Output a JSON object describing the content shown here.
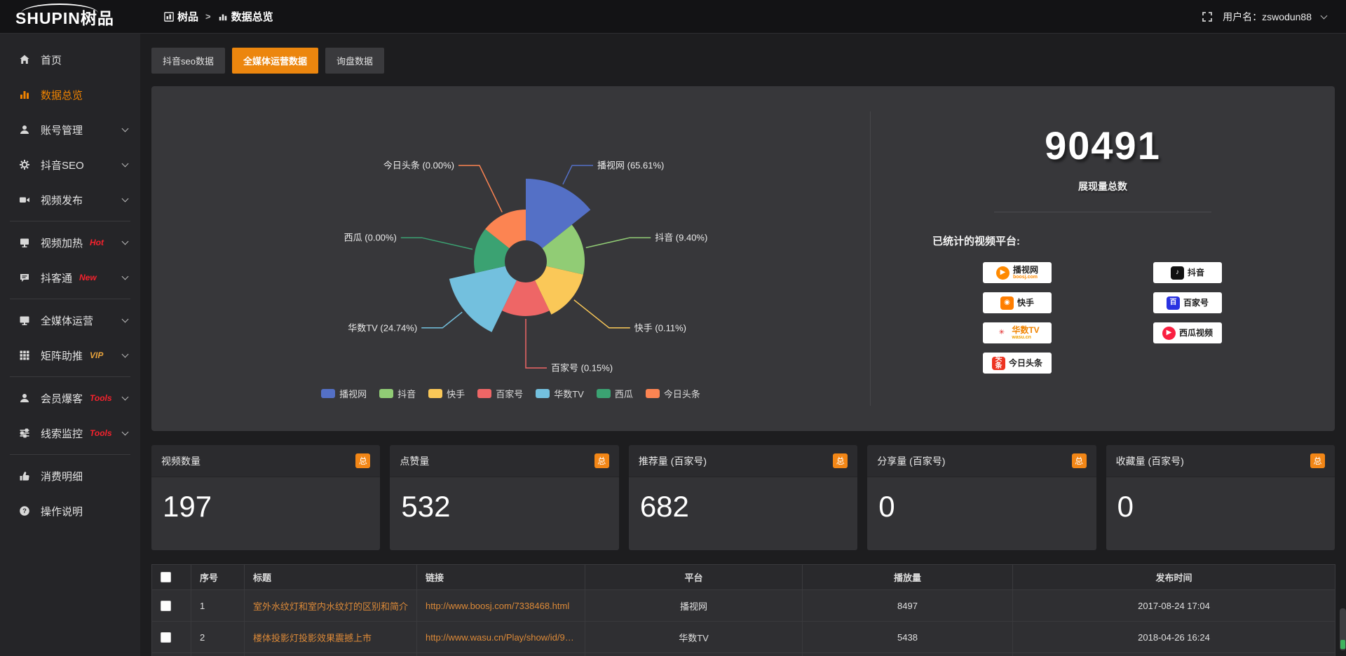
{
  "topbar": {
    "logo": "SHUPIN树品",
    "breadcrumb": {
      "root": "树品",
      "separator": ">",
      "current": "数据总览"
    },
    "username_label": "用户名：",
    "username": "zswodun88"
  },
  "sidebar": {
    "items": [
      {
        "label": "首页",
        "icon": "home",
        "active": false,
        "chevron": false,
        "badge": "",
        "divider_after": false
      },
      {
        "label": "数据总览",
        "icon": "chart",
        "active": true,
        "chevron": false,
        "badge": "",
        "divider_after": false
      },
      {
        "label": "账号管理",
        "icon": "user",
        "active": false,
        "chevron": true,
        "badge": "",
        "divider_after": false
      },
      {
        "label": "抖音SEO",
        "icon": "gear",
        "active": false,
        "chevron": true,
        "badge": "",
        "divider_after": false
      },
      {
        "label": "视频发布",
        "icon": "camera",
        "active": false,
        "chevron": true,
        "badge": "",
        "divider_after": true
      },
      {
        "label": "视频加热",
        "icon": "display",
        "active": false,
        "chevron": true,
        "badge": "Hot",
        "badge_color": "#f5222d",
        "divider_after": false
      },
      {
        "label": "抖客通",
        "icon": "chat",
        "active": false,
        "chevron": true,
        "badge": "New",
        "badge_color": "#f5222d",
        "divider_after": true
      },
      {
        "label": "全媒体运营",
        "icon": "monitor",
        "active": false,
        "chevron": true,
        "badge": "",
        "divider_after": false
      },
      {
        "label": "矩阵助推",
        "icon": "grid",
        "active": false,
        "chevron": true,
        "badge": "VIP",
        "badge_color": "#e6a23c",
        "divider_after": true
      },
      {
        "label": "会员爆客",
        "icon": "user",
        "active": false,
        "chevron": true,
        "badge": "Tools",
        "badge_color": "#f5222d",
        "divider_after": false
      },
      {
        "label": "线索监控",
        "icon": "sliders",
        "active": false,
        "chevron": true,
        "badge": "Tools",
        "badge_color": "#f5222d",
        "divider_after": true
      },
      {
        "label": "消费明细",
        "icon": "consumption",
        "active": false,
        "chevron": false,
        "badge": "",
        "divider_after": false
      },
      {
        "label": "操作说明",
        "icon": "help",
        "active": false,
        "chevron": false,
        "badge": "",
        "divider_after": false
      }
    ]
  },
  "tabs": [
    {
      "label": "抖音seo数据",
      "active": false
    },
    {
      "label": "全媒体运营数据",
      "active": true
    },
    {
      "label": "询盘数据",
      "active": false
    }
  ],
  "chart_data": {
    "type": "pie",
    "subtype": "nightingale-rose",
    "title": "",
    "legend_position": "bottom",
    "inner_radius": 30,
    "slices": [
      {
        "name": "播视网",
        "percent": 65.61,
        "label": "播视网 (65.61%)",
        "color": "#5470c6",
        "display_radius": 118
      },
      {
        "name": "抖音",
        "percent": 9.4,
        "label": "抖音 (9.40%)",
        "color": "#91cc75",
        "display_radius": 84
      },
      {
        "name": "快手",
        "percent": 0.11,
        "label": "快手 (0.11%)",
        "color": "#fac858",
        "display_radius": 84
      },
      {
        "name": "百家号",
        "percent": 0.15,
        "label": "百家号 (0.15%)",
        "color": "#ee6666",
        "display_radius": 78
      },
      {
        "name": "华数TV",
        "percent": 24.74,
        "label": "华数TV (24.74%)",
        "color": "#73c0de",
        "display_radius": 112
      },
      {
        "name": "西瓜",
        "percent": 0.0,
        "label": "西瓜 (0.00%)",
        "color": "#3ba272",
        "display_radius": 74
      },
      {
        "name": "今日头条",
        "percent": 0.0,
        "label": "今日头条 (0.00%)",
        "color": "#fc8452",
        "display_radius": 74
      }
    ]
  },
  "summary": {
    "total_value": "90491",
    "total_label": "展现量总数",
    "platforms_label": "已统计的视频平台:",
    "platforms": [
      {
        "name": "播视网",
        "sub": "boosj.com",
        "sub_color": "#ff8a00",
        "icon_glyph": "▶",
        "icon_bg": "#ff8a00",
        "icon_round": true
      },
      {
        "name": "快手",
        "sub": "",
        "icon_glyph": "◉",
        "icon_bg": "#ff7e00",
        "icon_round": false
      },
      {
        "name": "华数TV",
        "name_color": "#f08300",
        "sub": "wasu.cn",
        "sub_color": "#f0a000",
        "icon_glyph": "✳",
        "icon_bg": "#ffffff",
        "icon_fg": "#e02020",
        "icon_round": false
      },
      {
        "name": "今日头条",
        "sub": "",
        "icon_glyph": "头条",
        "icon_bg": "#ed3321",
        "icon_round": false
      },
      {
        "name": "抖音",
        "sub": "",
        "icon_glyph": "♪",
        "icon_bg": "#111111",
        "icon_round": false
      },
      {
        "name": "百家号",
        "sub": "",
        "icon_glyph": "百",
        "icon_bg": "#2932e1",
        "icon_round": false
      },
      {
        "name": "西瓜视频",
        "sub": "",
        "icon_glyph": "▶",
        "icon_bg": "#fa1f41",
        "icon_round": true
      }
    ]
  },
  "stat_cards": [
    {
      "title": "视频数量",
      "badge": "总",
      "value": "197"
    },
    {
      "title": "点赞量",
      "badge": "总",
      "value": "532"
    },
    {
      "title": "推荐量 (百家号)",
      "badge": "总",
      "value": "682"
    },
    {
      "title": "分享量 (百家号)",
      "badge": "总",
      "value": "0"
    },
    {
      "title": "收藏量 (百家号)",
      "badge": "总",
      "value": "0"
    }
  ],
  "table": {
    "headers": [
      "序号",
      "标题",
      "链接",
      "平台",
      "播放量",
      "发布时间"
    ],
    "rows": [
      {
        "index": "1",
        "title": "室外水纹灯和室内水纹灯的区别和简介",
        "link": "http://www.boosj.com/7338468.html",
        "platform": "播视网",
        "plays": "8497",
        "date": "2017-08-24 17:04"
      },
      {
        "index": "2",
        "title": "楼体投影灯投影效果震撼上市",
        "link": "http://www.wasu.cn/Play/show/id/952...",
        "platform": "华数TV",
        "plays": "5438",
        "date": "2018-04-26 16:24"
      },
      {
        "index": "",
        "title": "",
        "link": "",
        "platform": "",
        "plays": "",
        "date": ""
      }
    ]
  }
}
